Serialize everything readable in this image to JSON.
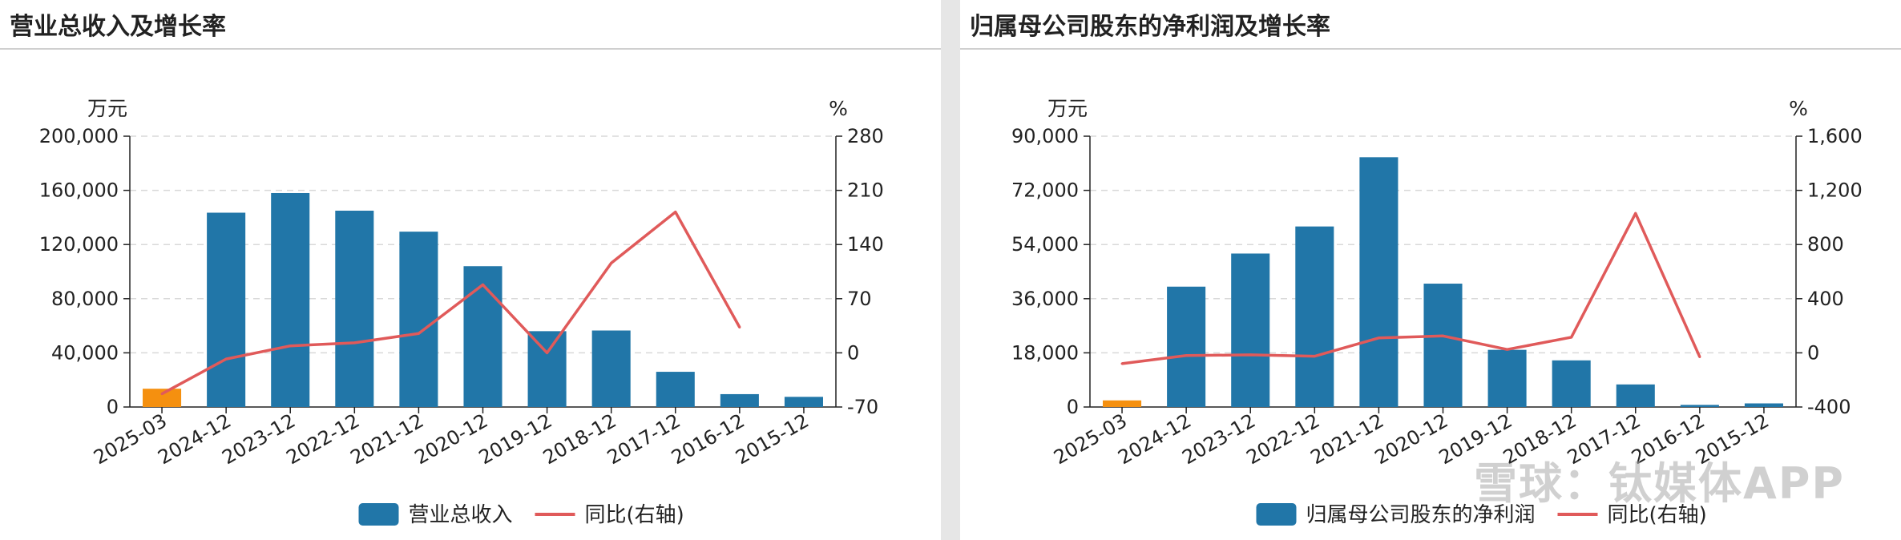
{
  "watermark": "雪球：钛媒体APP",
  "colors": {
    "bar": "#2176a8",
    "bar_highlight": "#f5900f",
    "line": "#e05a5a",
    "grid": "#d9d9d9",
    "axis": "#222222"
  },
  "chart_data": [
    {
      "type": "bar",
      "title": "营业总收入及增长率",
      "left_unit": "万元",
      "right_unit": "%",
      "categories": [
        "2025-03",
        "2024-12",
        "2023-12",
        "2022-12",
        "2021-12",
        "2020-12",
        "2019-12",
        "2018-12",
        "2017-12",
        "2016-12",
        "2015-12"
      ],
      "highlight_index": 0,
      "ylim_left": [
        0,
        200000
      ],
      "ylim_right": [
        -70,
        280
      ],
      "yticks_left": [
        "0",
        "40,000",
        "80,000",
        "120,000",
        "160,000",
        "200,000"
      ],
      "yticks_right": [
        "-70",
        "0",
        "70",
        "140",
        "210",
        "280"
      ],
      "grid": true,
      "legend_position": "bottom",
      "series": [
        {
          "name": "营业总收入",
          "kind": "bar",
          "axis": "left",
          "values": [
            13500,
            143500,
            158000,
            145000,
            129500,
            104000,
            56000,
            56500,
            26000,
            9500,
            7500
          ]
        },
        {
          "name": "同比(右轴)",
          "kind": "line",
          "axis": "right",
          "values": [
            -53,
            -8,
            9,
            13,
            25,
            88,
            0,
            116,
            182,
            33,
            null
          ]
        }
      ]
    },
    {
      "type": "bar",
      "title": "归属母公司股东的净利润及增长率",
      "left_unit": "万元",
      "right_unit": "%",
      "categories": [
        "2025-03",
        "2024-12",
        "2023-12",
        "2022-12",
        "2021-12",
        "2020-12",
        "2019-12",
        "2018-12",
        "2017-12",
        "2016-12",
        "2015-12"
      ],
      "highlight_index": 0,
      "ylim_left": [
        0,
        90000
      ],
      "ylim_right": [
        -400,
        1600
      ],
      "yticks_left": [
        "0",
        "18,000",
        "36,000",
        "54,000",
        "72,000",
        "90,000"
      ],
      "yticks_right": [
        "-400",
        "0",
        "400",
        "800",
        "1,200",
        "1,600"
      ],
      "grid": true,
      "legend_position": "bottom",
      "series": [
        {
          "name": "归属母公司股东的净利润",
          "kind": "bar",
          "axis": "left",
          "values": [
            2200,
            40000,
            51000,
            60000,
            83000,
            41000,
            19000,
            15500,
            7500,
            700,
            1200
          ]
        },
        {
          "name": "同比(右轴)",
          "kind": "line",
          "axis": "right",
          "values": [
            -80,
            -20,
            -15,
            -25,
            110,
            125,
            25,
            115,
            1030,
            -30,
            null
          ]
        }
      ]
    }
  ]
}
